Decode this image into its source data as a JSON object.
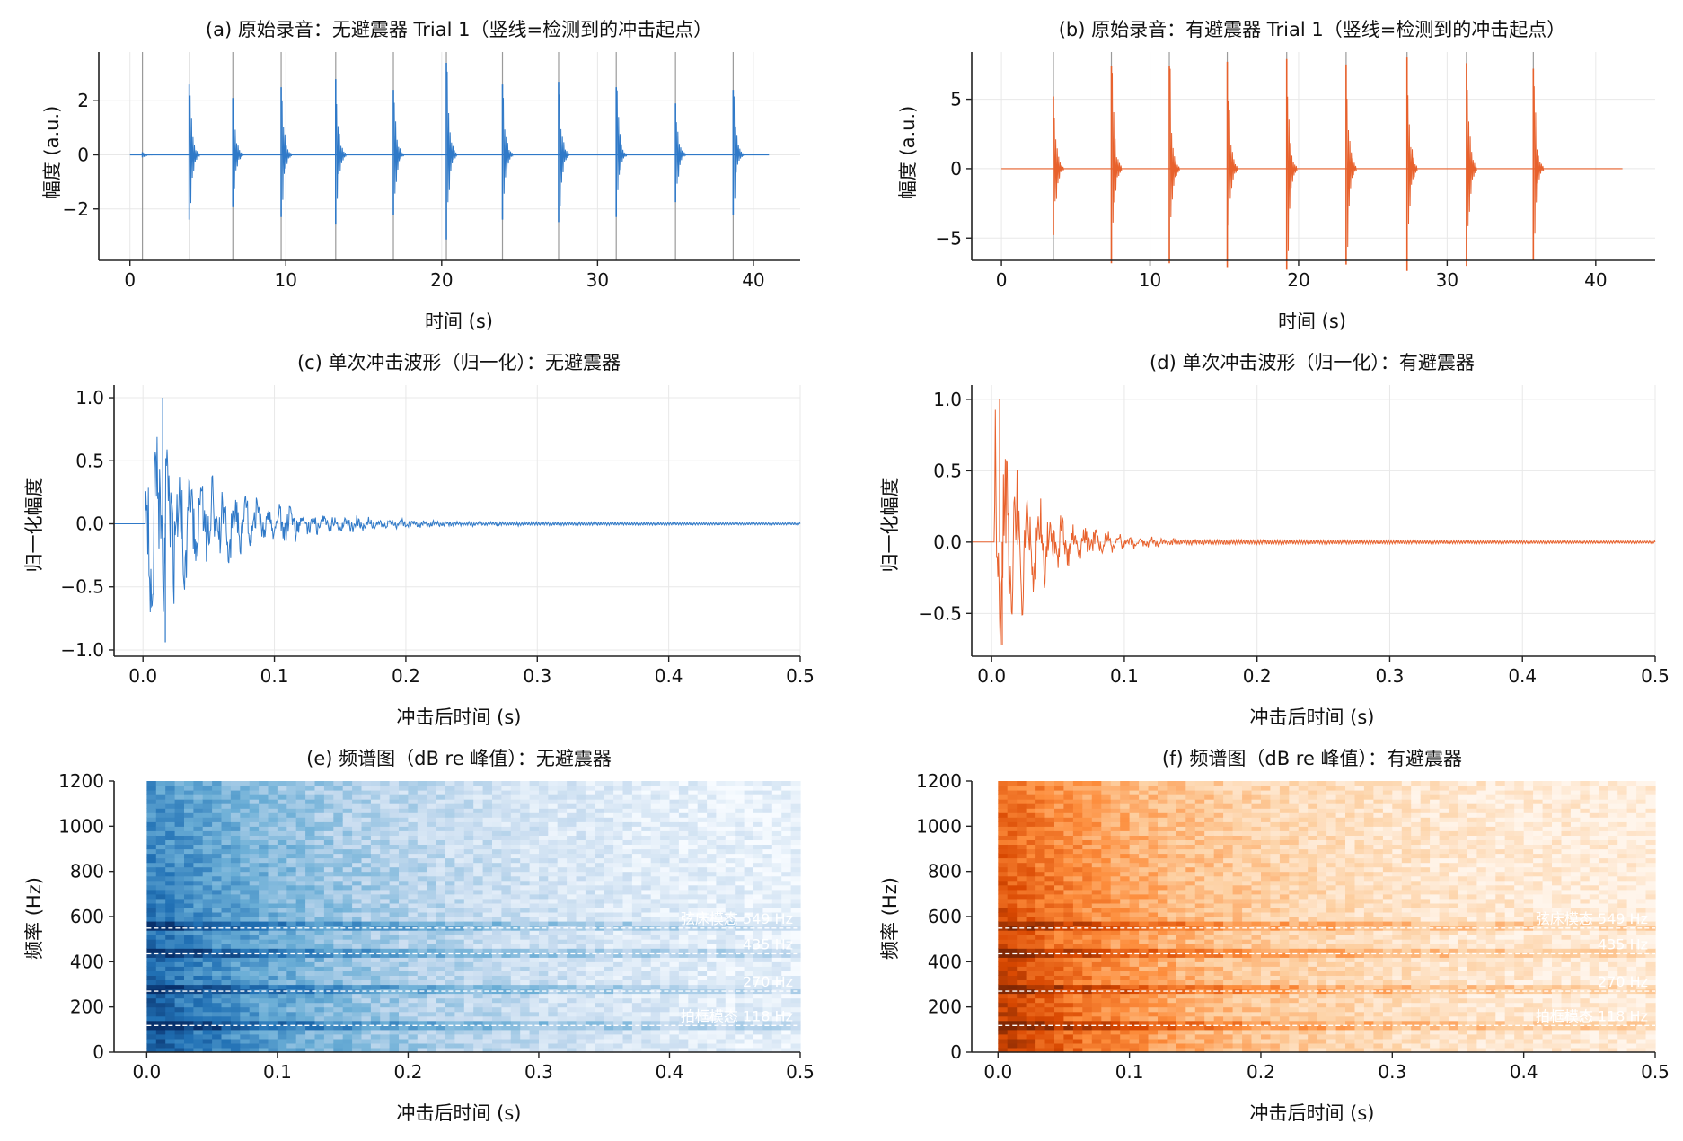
{
  "figure": {
    "background": "#ffffff"
  },
  "chart_data": [
    {
      "type": "line",
      "title": "(a) 原始录音：无避震器 Trial 1（竖线=检测到的冲击起点）",
      "xlabel": "时间 (s)",
      "ylabel": "幅度 (a.u.)",
      "xlim": [
        -2,
        43
      ],
      "ylim": [
        -3.9,
        3.8
      ],
      "xticks": [
        0,
        10,
        20,
        30,
        40
      ],
      "yticks": [
        -2,
        0,
        2
      ],
      "ytick_labels": [
        "−2",
        "0",
        "2"
      ],
      "grid": true,
      "color": "#2f79c8",
      "signal_duration": 41,
      "onsets": [
        0.8,
        3.8,
        6.6,
        9.7,
        13.2,
        16.9,
        20.3,
        23.9,
        27.5,
        31.2,
        35.0,
        38.7
      ],
      "peaks": [
        0.1,
        2.6,
        2.1,
        2.5,
        2.8,
        2.4,
        3.4,
        2.6,
        2.7,
        2.5,
        1.9,
        2.4
      ]
    },
    {
      "type": "line",
      "title": "(b) 原始录音：有避震器 Trial 1（竖线=检测到的冲击起点）",
      "xlabel": "时间 (s)",
      "ylabel": "幅度 (a.u.)",
      "xlim": [
        -2,
        44
      ],
      "ylim": [
        -6.6,
        8.4
      ],
      "xticks": [
        0,
        10,
        20,
        30,
        40
      ],
      "yticks": [
        -5,
        0,
        5
      ],
      "ytick_labels": [
        "−5",
        "0",
        "5"
      ],
      "grid": true,
      "color": "#e8612c",
      "signal_duration": 41.8,
      "onsets": [
        3.5,
        7.4,
        11.3,
        15.2,
        19.2,
        23.2,
        27.3,
        31.3,
        35.8
      ],
      "peaks": [
        5.2,
        7.4,
        7.4,
        7.7,
        7.9,
        7.5,
        8.0,
        7.6,
        7.2
      ]
    },
    {
      "type": "line",
      "title": "(c) 单次冲击波形（归一化）：无避震器",
      "xlabel": "冲击后时间 (s)",
      "ylabel": "归一化幅度",
      "xlim": [
        -0.022,
        0.5
      ],
      "ylim": [
        -1.05,
        1.1
      ],
      "xticks": [
        0.0,
        0.1,
        0.2,
        0.3,
        0.4,
        0.5
      ],
      "xtick_labels": [
        "0.0",
        "0.1",
        "0.2",
        "0.3",
        "0.4",
        "0.5"
      ],
      "yticks": [
        -1.0,
        -0.5,
        0.0,
        0.5,
        1.0
      ],
      "ytick_labels": [
        "−1.0",
        "−0.5",
        "0.0",
        "0.5",
        "1.0"
      ],
      "grid": true,
      "color": "#2f79c8",
      "max": 1.0,
      "min": -0.94,
      "decay_time": 0.1
    },
    {
      "type": "line",
      "title": "(d) 单次冲击波形（归一化）：有避震器",
      "xlabel": "冲击后时间 (s)",
      "ylabel": "归一化幅度",
      "xlim": [
        -0.015,
        0.5
      ],
      "ylim": [
        -0.8,
        1.1
      ],
      "xticks": [
        0.0,
        0.1,
        0.2,
        0.3,
        0.4,
        0.5
      ],
      "xtick_labels": [
        "0.0",
        "0.1",
        "0.2",
        "0.3",
        "0.4",
        "0.5"
      ],
      "yticks": [
        -0.5,
        0.0,
        0.5,
        1.0
      ],
      "ytick_labels": [
        "−0.5",
        "0.0",
        "0.5",
        "1.0"
      ],
      "grid": true,
      "color": "#e8612c",
      "max": 1.0,
      "min": -0.72,
      "decay_time": 0.06
    },
    {
      "type": "heatmap",
      "title": "(e) 频谱图（dB re 峰值）：无避震器",
      "xlabel": "冲击后时间 (s)",
      "ylabel": "频率 (Hz)",
      "xlim": [
        -0.025,
        0.5
      ],
      "ylim": [
        0,
        1200
      ],
      "xticks": [
        0.0,
        0.1,
        0.2,
        0.3,
        0.4,
        0.5
      ],
      "xtick_labels": [
        "0.0",
        "0.1",
        "0.2",
        "0.3",
        "0.4",
        "0.5"
      ],
      "yticks": [
        0,
        200,
        400,
        600,
        800,
        1000,
        1200
      ],
      "colormap": "Blues",
      "modes": [
        {
          "freq": 118,
          "label": "拍框模态 118 Hz"
        },
        {
          "freq": 270,
          "label": "270 Hz"
        },
        {
          "freq": 435,
          "label": "435 Hz"
        },
        {
          "freq": 549,
          "label": "弦床模态 549 Hz"
        }
      ]
    },
    {
      "type": "heatmap",
      "title": "(f) 频谱图（dB re 峰值）：有避震器",
      "xlabel": "冲击后时间 (s)",
      "ylabel": "频率 (Hz)",
      "xlim": [
        -0.02,
        0.5
      ],
      "ylim": [
        0,
        1200
      ],
      "xticks": [
        0.0,
        0.1,
        0.2,
        0.3,
        0.4,
        0.5
      ],
      "xtick_labels": [
        "0.0",
        "0.1",
        "0.2",
        "0.3",
        "0.4",
        "0.5"
      ],
      "yticks": [
        0,
        200,
        400,
        600,
        800,
        1000,
        1200
      ],
      "colormap": "Oranges",
      "modes": [
        {
          "freq": 118,
          "label": "拍框模态 118 Hz"
        },
        {
          "freq": 270,
          "label": "270 Hz"
        },
        {
          "freq": 435,
          "label": "435 Hz"
        },
        {
          "freq": 549,
          "label": "弦床模态 549 Hz"
        }
      ]
    }
  ]
}
